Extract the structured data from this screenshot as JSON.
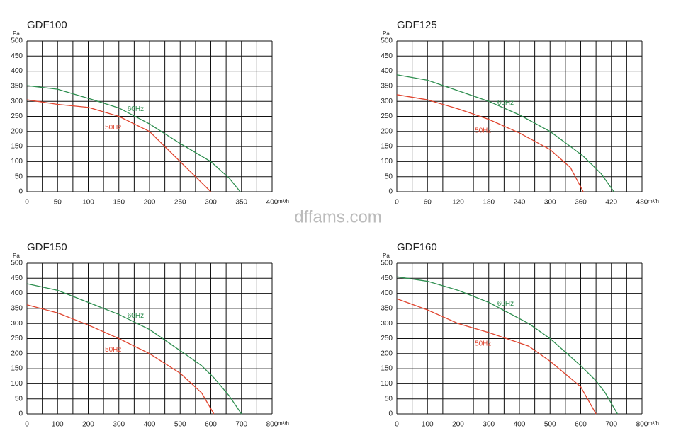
{
  "watermark": "dffams.com",
  "chart_data": [
    {
      "type": "line",
      "title": "GDF100",
      "y_label": "Pa",
      "x_label": "m³/h",
      "x": [
        0,
        50,
        100,
        150,
        200,
        250,
        300,
        330,
        348
      ],
      "series": [
        {
          "name": "60Hz",
          "color": "#2f8f50",
          "values": [
            352,
            340,
            310,
            278,
            225,
            160,
            100,
            45,
            0
          ]
        },
        {
          "name": "50Hz",
          "color": "#e0452f",
          "values": [
            305,
            290,
            280,
            250,
            200,
            100,
            0,
            null,
            null
          ]
        }
      ],
      "xlim": [
        0,
        400
      ],
      "xticks": [
        0,
        50,
        100,
        150,
        200,
        250,
        300,
        350,
        400
      ],
      "xgrid": [
        0,
        25,
        50,
        75,
        100,
        125,
        150,
        175,
        200,
        225,
        250,
        275,
        300,
        325,
        350,
        375,
        400
      ],
      "ylim": [
        0,
        500
      ],
      "yticks": [
        0,
        50,
        100,
        150,
        200,
        250,
        300,
        350,
        400,
        450,
        500
      ],
      "grid": true
    },
    {
      "type": "line",
      "title": "GDF125",
      "y_label": "Pa",
      "x_label": "m³/h",
      "x": [
        0,
        60,
        120,
        180,
        240,
        300,
        340,
        365,
        400,
        425
      ],
      "series": [
        {
          "name": "60Hz",
          "color": "#2f8f50",
          "values": [
            388,
            370,
            335,
            300,
            255,
            200,
            150,
            118,
            60,
            0
          ]
        },
        {
          "name": "50Hz",
          "color": "#e0452f",
          "values": [
            322,
            305,
            275,
            240,
            195,
            140,
            80,
            0,
            null,
            null
          ]
        }
      ],
      "xlim": [
        0,
        480
      ],
      "xticks": [
        0,
        60,
        120,
        180,
        240,
        300,
        360,
        420,
        480
      ],
      "xgrid": [
        0,
        30,
        60,
        90,
        120,
        150,
        180,
        210,
        240,
        270,
        300,
        330,
        360,
        390,
        420,
        450,
        480
      ],
      "ylim": [
        0,
        500
      ],
      "yticks": [
        0,
        50,
        100,
        150,
        200,
        250,
        300,
        350,
        400,
        450,
        500
      ],
      "grid": true
    },
    {
      "type": "line",
      "title": "GDF150",
      "y_label": "Pa",
      "x_label": "m³/h",
      "x": [
        0,
        100,
        200,
        300,
        400,
        500,
        570,
        610,
        660,
        700
      ],
      "series": [
        {
          "name": "60Hz",
          "color": "#2f8f50",
          "values": [
            432,
            410,
            370,
            330,
            280,
            210,
            160,
            120,
            60,
            0
          ]
        },
        {
          "name": "50Hz",
          "color": "#e0452f",
          "values": [
            362,
            335,
            295,
            250,
            200,
            135,
            70,
            0,
            null,
            null
          ]
        }
      ],
      "xlim": [
        0,
        800
      ],
      "xticks": [
        0,
        100,
        200,
        300,
        400,
        500,
        600,
        700,
        800
      ],
      "xgrid": [
        0,
        50,
        100,
        150,
        200,
        250,
        300,
        350,
        400,
        450,
        500,
        550,
        600,
        650,
        700,
        750,
        800
      ],
      "ylim": [
        0,
        500
      ],
      "yticks": [
        0,
        50,
        100,
        150,
        200,
        250,
        300,
        350,
        400,
        450,
        500
      ],
      "grid": true
    },
    {
      "type": "line",
      "title": "GDF160",
      "y_label": "Pa",
      "x_label": "m³/h",
      "x": [
        0,
        100,
        200,
        300,
        430,
        500,
        600,
        650,
        680,
        720
      ],
      "series": [
        {
          "name": "60Hz",
          "color": "#2f8f50",
          "values": [
            455,
            440,
            410,
            370,
            300,
            250,
            160,
            110,
            70,
            0
          ]
        },
        {
          "name": "50Hz",
          "color": "#e0452f",
          "values": [
            382,
            345,
            300,
            270,
            225,
            175,
            90,
            0,
            null,
            null
          ]
        }
      ],
      "xlim": [
        0,
        800
      ],
      "xticks": [
        0,
        100,
        200,
        300,
        400,
        500,
        600,
        700,
        800
      ],
      "xgrid": [
        0,
        50,
        100,
        150,
        200,
        250,
        300,
        350,
        400,
        450,
        500,
        550,
        600,
        650,
        700,
        750,
        800
      ],
      "ylim": [
        0,
        500
      ],
      "yticks": [
        0,
        50,
        100,
        150,
        200,
        250,
        300,
        350,
        400,
        450,
        500
      ],
      "grid": true
    }
  ]
}
